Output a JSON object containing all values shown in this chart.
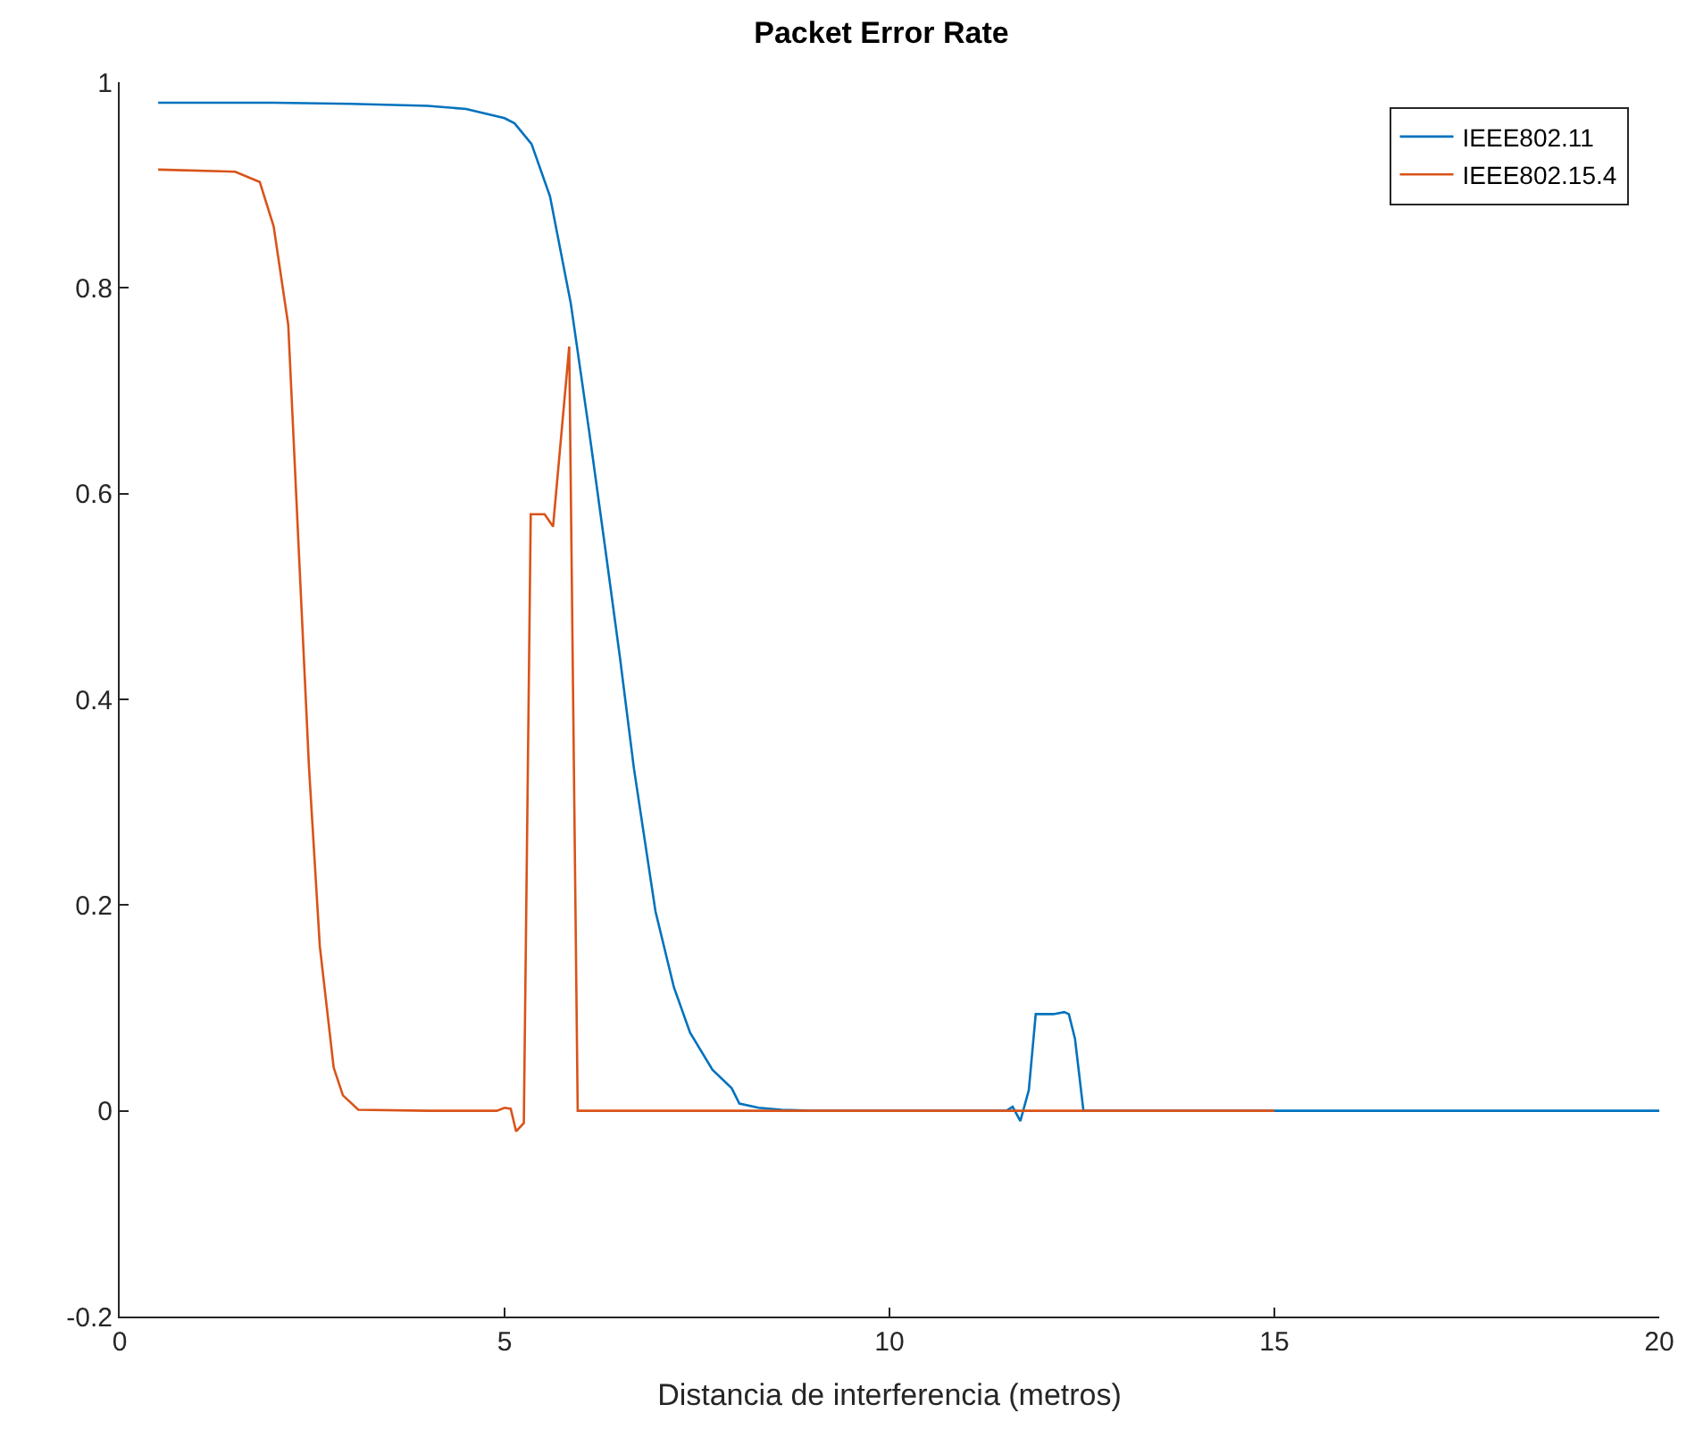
{
  "chart_data": {
    "type": "line",
    "title": "Packet Error Rate",
    "xlabel": "Distancia de interferencia (metros)",
    "xlim": [
      0,
      20
    ],
    "xticks": [
      0,
      5,
      10,
      15,
      20
    ],
    "ylim": [
      -0.2,
      1
    ],
    "yticks": [
      -0.2,
      0,
      0.2,
      0.4,
      0.6,
      0.8,
      1
    ],
    "legend": "top right",
    "marker": "none",
    "line_style": "solid",
    "series": [
      {
        "name": "IEEE802.11",
        "color": "#0072bd",
        "x": [
          0.5,
          2,
          3,
          4,
          4.5,
          5,
          5.13,
          5.35,
          5.59,
          5.86,
          6.1,
          6.32,
          6.5,
          6.68,
          6.96,
          7.2,
          7.41,
          7.7,
          7.95,
          8.05,
          8.3,
          8.6,
          9,
          10,
          11,
          11.52,
          11.6,
          11.7,
          11.81,
          11.9,
          12.13,
          12.27,
          12.33,
          12.41,
          12.52,
          13,
          15,
          20
        ],
        "values": [
          0.98,
          0.98,
          0.979,
          0.977,
          0.974,
          0.965,
          0.96,
          0.94,
          0.889,
          0.785,
          0.66,
          0.54,
          0.44,
          0.333,
          0.194,
          0.12,
          0.076,
          0.04,
          0.022,
          0.007,
          0.003,
          0.001,
          0,
          0,
          0,
          0,
          0.004,
          -0.01,
          0.02,
          0.094,
          0.094,
          0.096,
          0.094,
          0.07,
          0,
          0,
          0,
          0
        ]
      },
      {
        "name": "IEEE802.15.4",
        "color": "#d95319",
        "x": [
          0.5,
          1.5,
          1.82,
          2.0,
          2.19,
          2.33,
          2.46,
          2.6,
          2.78,
          2.9,
          3.1,
          4,
          4.9,
          5.0,
          5.08,
          5.15,
          5.25,
          5.34,
          5.52,
          5.63,
          5.84,
          5.95,
          8,
          10,
          12,
          15
        ],
        "values": [
          0.915,
          0.913,
          0.903,
          0.86,
          0.764,
          0.54,
          0.333,
          0.16,
          0.042,
          0.015,
          0.001,
          0,
          0,
          0.003,
          0.002,
          -0.02,
          -0.012,
          0.58,
          0.58,
          0.568,
          0.743,
          0,
          0,
          0,
          0,
          0
        ]
      }
    ]
  }
}
